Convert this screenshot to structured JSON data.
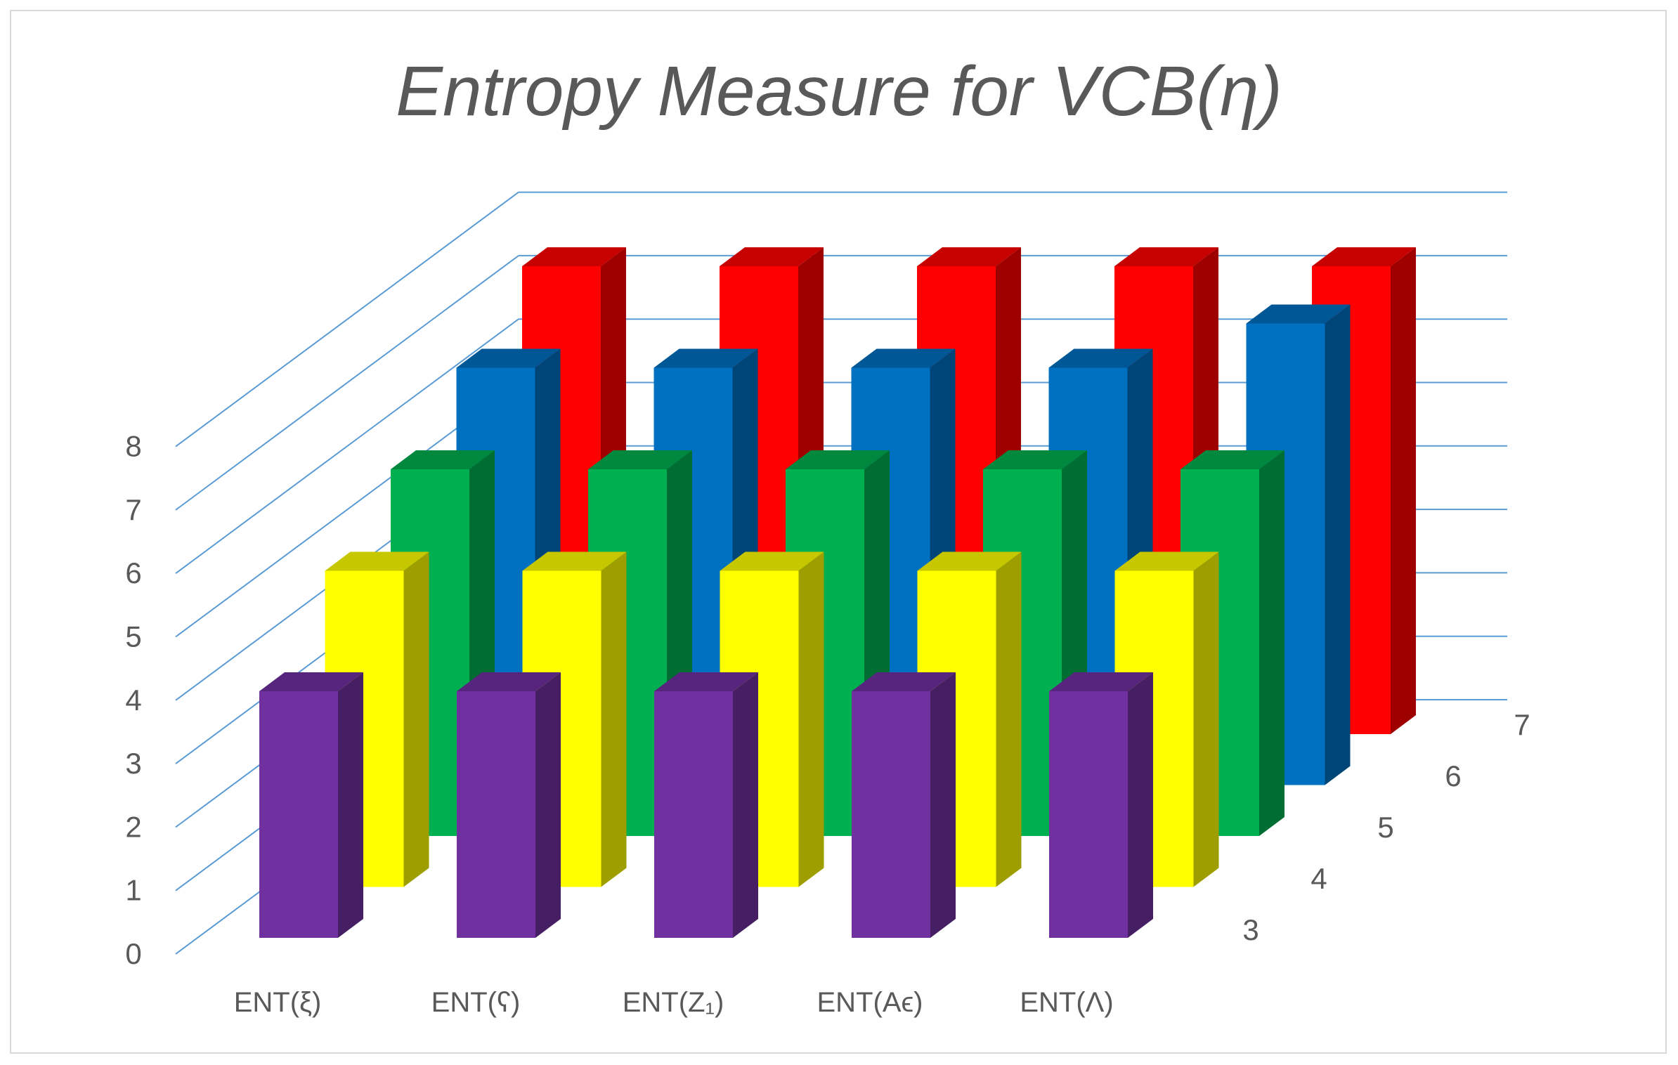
{
  "chart_data": {
    "type": "bar",
    "subtype": "3d-column",
    "title": "Entropy Measure for VCB(η)",
    "categories": [
      "ENT(ξ)",
      "ENT(ʕ)",
      "ENT(Z₁)",
      "ENT(Aϵ)",
      "ENT(Λ)"
    ],
    "series": [
      {
        "name": "3",
        "color": "#7030A0",
        "values": [
          3.9,
          3.9,
          3.9,
          3.9,
          3.9
        ]
      },
      {
        "name": "4",
        "color": "#FFFF00",
        "values": [
          5.0,
          5.0,
          5.0,
          5.0,
          5.0
        ]
      },
      {
        "name": "5",
        "color": "#00B050",
        "values": [
          5.8,
          5.8,
          5.8,
          5.8,
          5.8
        ]
      },
      {
        "name": "6",
        "color": "#0070C0",
        "values": [
          6.6,
          6.6,
          6.6,
          6.6,
          7.3
        ]
      },
      {
        "name": "7",
        "color": "#FF0000",
        "values": [
          7.4,
          7.4,
          7.4,
          7.4,
          7.4
        ]
      }
    ],
    "yticks": [
      "0",
      "1",
      "2",
      "3",
      "4",
      "5",
      "6",
      "7",
      "8"
    ],
    "ylim": [
      0,
      8
    ],
    "depth_labels": [
      "3",
      "4",
      "5",
      "6",
      "7"
    ],
    "grid": true,
    "gridline_color": "#5B9BD5"
  }
}
